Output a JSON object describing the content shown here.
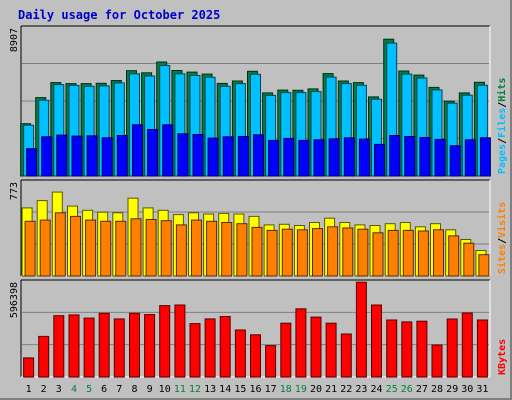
{
  "page": {
    "title": "Daily usage for October 2025",
    "colors": {
      "background": "#c0c0c0",
      "title": "#0000cc",
      "hits": "#008040",
      "files": "#00c0ff",
      "pages": "#0000ff",
      "visits": "#ffff00",
      "sites": "#ff8000",
      "kbytes": "#ff0000",
      "weekday_label": "#000000",
      "weekend_label": "#008040"
    }
  },
  "chart_data": [
    {
      "type": "bar",
      "panel": "hits-files-pages",
      "x": [
        1,
        2,
        3,
        4,
        5,
        6,
        7,
        8,
        9,
        10,
        11,
        12,
        13,
        14,
        15,
        16,
        17,
        18,
        19,
        20,
        21,
        22,
        23,
        24,
        25,
        26,
        27,
        28,
        29,
        30,
        31
      ],
      "ymax_label": "8907",
      "ylim": [
        0,
        8907
      ],
      "y_axis_labels": [
        "Pages",
        "Files",
        "Hits"
      ],
      "series": [
        {
          "name": "Hits",
          "values": [
            3150,
            4720,
            5620,
            5560,
            5560,
            5580,
            5750,
            6340,
            6210,
            6860,
            6350,
            6250,
            6130,
            5570,
            5720,
            6300,
            5000,
            5170,
            5160,
            5240,
            6160,
            5720,
            5620,
            4760,
            8230,
            6320,
            6070,
            5330,
            4500,
            5000,
            5640
          ]
        },
        {
          "name": "Files",
          "values": [
            3060,
            4560,
            5500,
            5450,
            5400,
            5420,
            5600,
            6150,
            6020,
            6650,
            6150,
            6050,
            5940,
            5400,
            5560,
            6120,
            4850,
            5020,
            5020,
            5080,
            5950,
            5560,
            5460,
            4620,
            8000,
            6130,
            5900,
            5180,
            4380,
            4860,
            5460
          ]
        },
        {
          "name": "Pages",
          "values": [
            1640,
            2360,
            2460,
            2400,
            2420,
            2300,
            2440,
            3080,
            2800,
            3080,
            2540,
            2500,
            2280,
            2360,
            2380,
            2480,
            2140,
            2260,
            2140,
            2180,
            2240,
            2300,
            2220,
            1900,
            2440,
            2380,
            2320,
            2200,
            1820,
            2180,
            2300
          ]
        }
      ]
    },
    {
      "type": "bar",
      "panel": "visits-sites",
      "x": [
        1,
        2,
        3,
        4,
        5,
        6,
        7,
        8,
        9,
        10,
        11,
        12,
        13,
        14,
        15,
        16,
        17,
        18,
        19,
        20,
        21,
        22,
        23,
        24,
        25,
        26,
        27,
        28,
        29,
        30,
        31
      ],
      "ymax_label": "773",
      "ylim": [
        0,
        773
      ],
      "y_axis_labels": [
        "Sites",
        "Visits"
      ],
      "series": [
        {
          "name": "Visits",
          "values": [
            560,
            620,
            690,
            575,
            540,
            525,
            520,
            640,
            560,
            540,
            505,
            520,
            510,
            515,
            510,
            490,
            420,
            425,
            415,
            440,
            475,
            440,
            420,
            415,
            430,
            440,
            405,
            430,
            380,
            300,
            210
          ]
        },
        {
          "name": "Sites",
          "values": [
            450,
            460,
            520,
            490,
            460,
            450,
            450,
            470,
            465,
            455,
            420,
            460,
            450,
            440,
            430,
            400,
            375,
            385,
            380,
            390,
            405,
            395,
            385,
            355,
            375,
            375,
            370,
            380,
            330,
            270,
            175
          ]
        }
      ]
    },
    {
      "type": "bar",
      "panel": "kbytes",
      "x": [
        1,
        2,
        3,
        4,
        5,
        6,
        7,
        8,
        9,
        10,
        11,
        12,
        13,
        14,
        15,
        16,
        17,
        18,
        19,
        20,
        21,
        22,
        23,
        24,
        25,
        26,
        27,
        28,
        29,
        30,
        31
      ],
      "ymax_label": "596398",
      "ylim": [
        0,
        596398
      ],
      "y_axis_labels": [
        "KBytes"
      ],
      "series": [
        {
          "name": "KBytes",
          "values": [
            120000,
            255000,
            385000,
            390000,
            370000,
            400000,
            365000,
            400000,
            392000,
            448000,
            452000,
            335000,
            365000,
            380000,
            295000,
            265000,
            197000,
            338000,
            428000,
            376000,
            338000,
            270000,
            595000,
            452000,
            358000,
            346000,
            350000,
            201000,
            364000,
            402000,
            358000
          ]
        }
      ]
    }
  ]
}
